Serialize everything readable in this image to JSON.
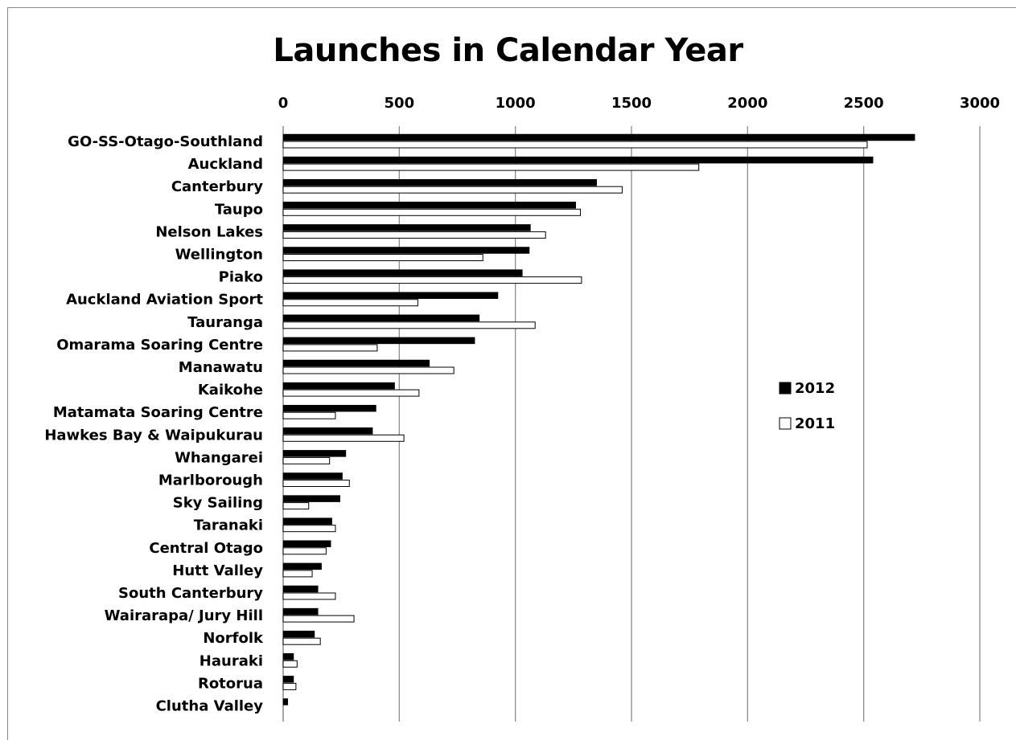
{
  "chart_data": {
    "type": "bar",
    "orientation": "horizontal",
    "title": "Launches in Calendar Year",
    "xlabel": "",
    "ylabel": "",
    "xlim": [
      0,
      3000
    ],
    "x_ticks": [
      0,
      500,
      1000,
      1500,
      2000,
      2500,
      3000
    ],
    "x_axis_position": "top",
    "grid": true,
    "legend_position": "right",
    "categories": [
      "GO-SS-Otago-Southland",
      "Auckland",
      "Canterbury",
      "Taupo",
      "Nelson Lakes",
      "Wellington",
      "Piako",
      "Auckland Aviation Sport",
      "Tauranga",
      "Omarama Soaring Centre",
      "Manawatu",
      "Kaikohe",
      "Matamata Soaring Centre",
      "Hawkes Bay & Waipukurau",
      "Whangarei",
      "Marlborough",
      "Sky Sailing",
      "Taranaki",
      "Central Otago",
      "Hutt Valley",
      "South Canterbury",
      "Wairarapa/ Jury Hill",
      "Norfolk",
      "Hauraki",
      "Rotorua",
      "Clutha Valley"
    ],
    "series": [
      {
        "name": "2012",
        "color": "#000000",
        "values": [
          2720,
          2540,
          1350,
          1260,
          1065,
          1060,
          1030,
          925,
          845,
          825,
          630,
          480,
          400,
          385,
          270,
          255,
          245,
          210,
          205,
          165,
          150,
          150,
          135,
          45,
          45,
          20
        ]
      },
      {
        "name": "2011",
        "color": "#ffffff",
        "values": [
          2515,
          1790,
          1460,
          1280,
          1130,
          860,
          1285,
          580,
          1085,
          405,
          735,
          585,
          225,
          520,
          200,
          285,
          110,
          225,
          185,
          125,
          225,
          305,
          160,
          60,
          55,
          0
        ]
      }
    ]
  }
}
